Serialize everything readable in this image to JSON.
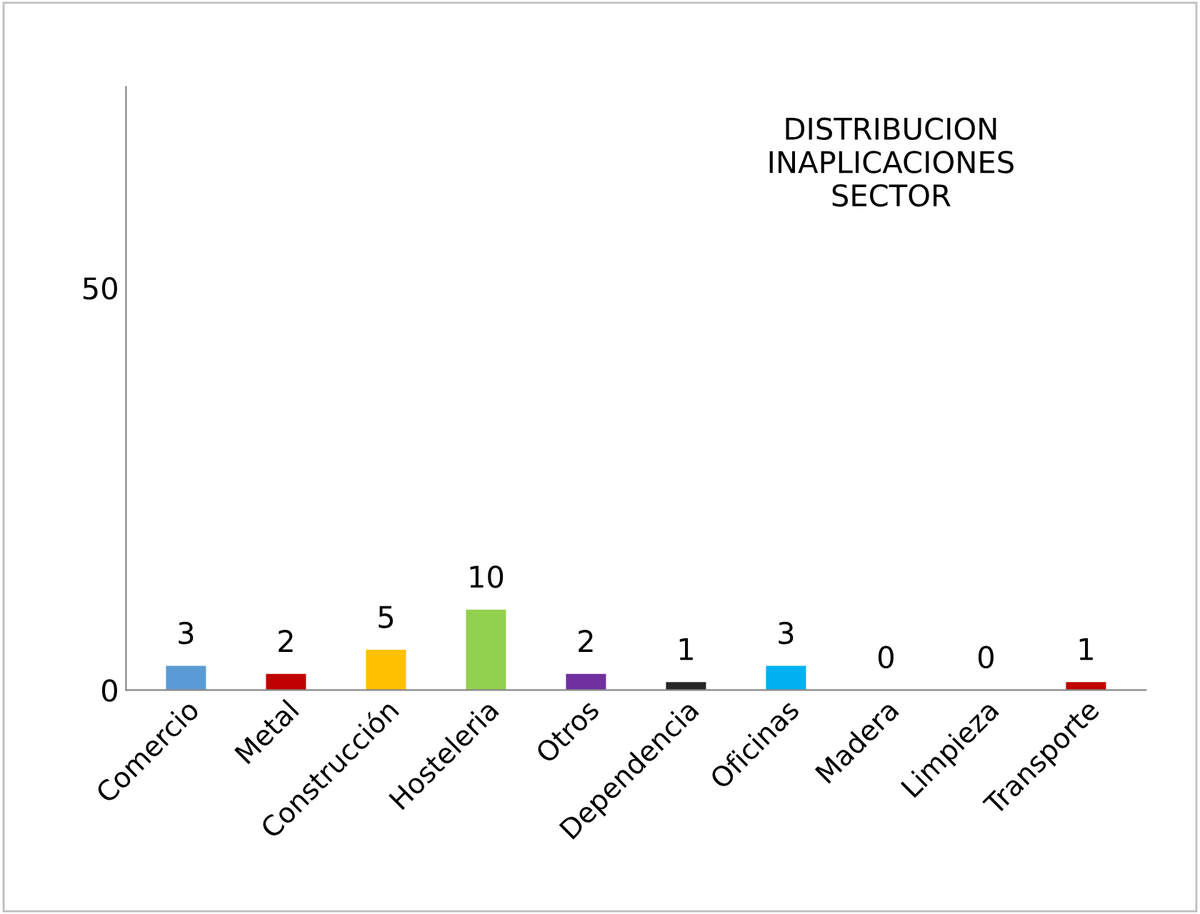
{
  "chart_data": {
    "type": "bar",
    "title": "DISTRIBUCION\nINAPLICACIONES\nSECTOR",
    "categories": [
      "Comercio",
      "Metal",
      "Construcción",
      "Hosteleria",
      "Otros",
      "Dependencia",
      "Oficinas",
      "Madera",
      "Limpieza",
      "Transporte"
    ],
    "values": [
      3,
      2,
      5,
      10,
      2,
      1,
      3,
      0,
      0,
      1
    ],
    "colors": [
      "#5b9bd5",
      "#c00000",
      "#ffc000",
      "#92d050",
      "#7030a0",
      "#262626",
      "#00b0f0",
      "#c09000",
      "#595959",
      "#c00000"
    ],
    "ylim": [
      0,
      75
    ],
    "yticks": [
      0,
      50
    ],
    "data_labels": true,
    "grid": false
  }
}
